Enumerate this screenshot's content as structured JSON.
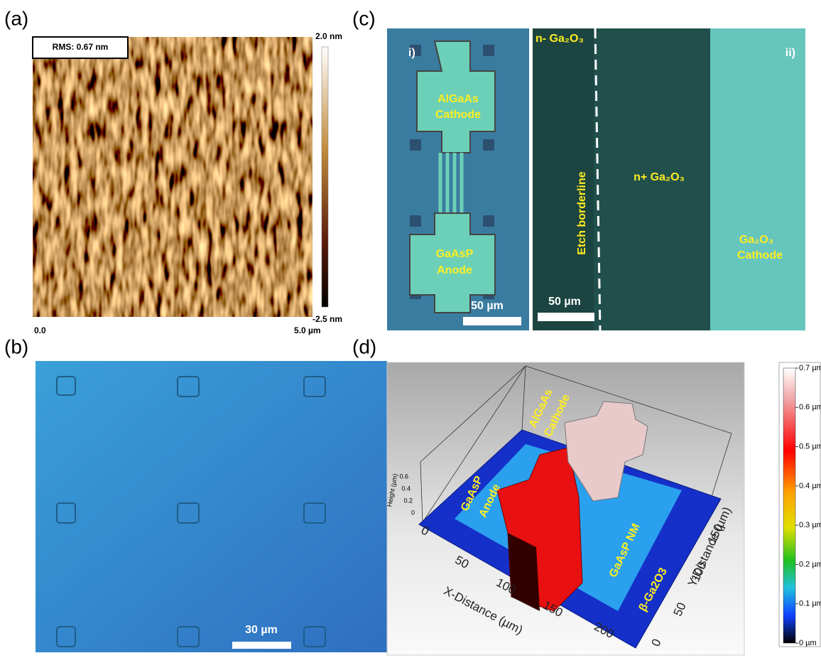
{
  "panels": {
    "a": {
      "label": "(a)",
      "rms": "RMS: 0.67 nm",
      "colorbar_max": "2.0 nm",
      "colorbar_min": "-2.5 nm",
      "x_start": "0.0",
      "x_end": "5.0 µm"
    },
    "b": {
      "label": "(b)",
      "scale_bar": "30 µm"
    },
    "c": {
      "label": "(c)",
      "i": {
        "tag": "i)",
        "top_pad": [
          "AlGaAs",
          "Cathode"
        ],
        "bottom_pad": [
          "GaAsP",
          "Anode"
        ],
        "scale_bar": "50 µm"
      },
      "ii": {
        "tag": "ii)",
        "n_minus": "n- Ga₂O₃",
        "border": "Etch borderline",
        "n_plus": "n+ Ga₂O₃",
        "cathode": [
          "Ga₂O₃",
          "Cathode"
        ],
        "scale_bar": "50 µm"
      }
    },
    "d": {
      "label": "(d)",
      "colorbar": [
        "0.7 µm",
        "0.6 µm",
        "0.5 µm",
        "0.4 µm",
        "0.3 µm",
        "0.2 µm",
        "0.1 µm",
        "0 µm"
      ],
      "labels": {
        "cathode": [
          "AlGaAs",
          "Cathode"
        ],
        "anode": [
          "GaAsP",
          "Anode"
        ],
        "nm": "GaAsP NM",
        "substrate": "β-Ga2O3"
      },
      "x_axis": {
        "title": "X-Distance (µm)",
        "ticks": [
          "0",
          "50",
          "100",
          "150",
          "200"
        ]
      },
      "y_axis": {
        "title": "Y-Distance (µm)",
        "ticks": [
          "0",
          "50",
          "100",
          "150"
        ]
      },
      "z_axis": {
        "title": "Height (µm)",
        "ticks": [
          "0",
          "0.2",
          "0.4",
          "0.6"
        ]
      }
    }
  }
}
